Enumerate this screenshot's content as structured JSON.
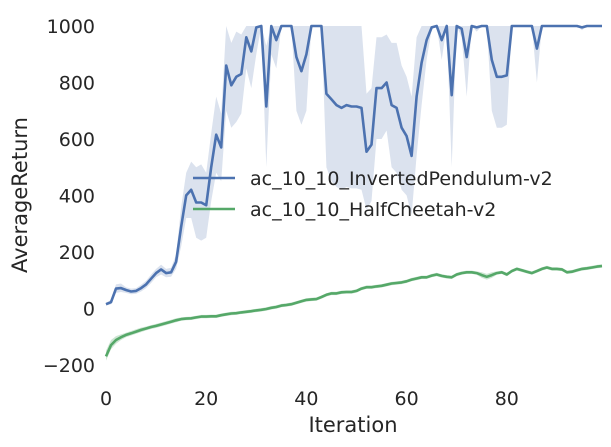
{
  "chart_data": {
    "type": "line",
    "xlabel": "Iteration",
    "ylabel": "AverageReturn",
    "xlim": [
      0,
      99
    ],
    "ylim": [
      -250,
      1000
    ],
    "xticks": [
      0,
      20,
      40,
      60,
      80
    ],
    "yticks": [
      -200,
      0,
      200,
      400,
      600,
      800,
      1000
    ],
    "xtick_labels": [
      "0",
      "20",
      "40",
      "60",
      "80"
    ],
    "ytick_labels": [
      "−200",
      "0",
      "200",
      "400",
      "600",
      "800",
      "1000"
    ],
    "grid": false,
    "legend_position": "center-right",
    "series": [
      {
        "name": "ac_10_10_InvertedPendulum-v2",
        "color": "#4c72b0",
        "band_color": "#dbe2ee",
        "x": [
          0,
          1,
          2,
          3,
          4,
          5,
          6,
          7,
          8,
          9,
          10,
          11,
          12,
          13,
          14,
          15,
          16,
          17,
          18,
          19,
          20,
          21,
          22,
          23,
          24,
          25,
          26,
          27,
          28,
          29,
          30,
          31,
          32,
          33,
          34,
          35,
          36,
          37,
          38,
          39,
          40,
          41,
          42,
          43,
          44,
          45,
          46,
          47,
          48,
          49,
          50,
          51,
          52,
          53,
          54,
          55,
          56,
          57,
          58,
          59,
          60,
          61,
          62,
          63,
          64,
          65,
          66,
          67,
          68,
          69,
          70,
          71,
          72,
          73,
          74,
          75,
          76,
          77,
          78,
          79,
          80,
          81,
          82,
          83,
          84,
          85,
          86,
          87,
          88,
          89,
          90,
          91,
          92,
          93,
          94,
          95,
          96,
          97,
          98,
          99
        ],
        "values": [
          15,
          22,
          70,
          72,
          65,
          60,
          62,
          72,
          85,
          105,
          125,
          138,
          125,
          128,
          165,
          290,
          400,
          420,
          375,
          375,
          365,
          500,
          615,
          570,
          860,
          790,
          820,
          830,
          960,
          910,
          995,
          1000,
          715,
          1000,
          950,
          1000,
          1000,
          1000,
          890,
          840,
          900,
          1000,
          1000,
          1000,
          760,
          740,
          720,
          710,
          720,
          715,
          715,
          710,
          555,
          580,
          780,
          780,
          800,
          720,
          710,
          640,
          610,
          540,
          750,
          870,
          950,
          995,
          1000,
          950,
          1000,
          755,
          1000,
          990,
          890,
          1000,
          995,
          1000,
          1000,
          880,
          820,
          820,
          825,
          1000,
          1000,
          1000,
          1000,
          1000,
          920,
          1000,
          1000,
          1000,
          1000,
          1000,
          1000,
          1000,
          1000,
          995,
          1000,
          1000,
          1000,
          1000
        ],
        "lower": [
          10,
          15,
          55,
          58,
          55,
          50,
          52,
          60,
          72,
          90,
          110,
          120,
          110,
          112,
          140,
          220,
          320,
          320,
          250,
          240,
          250,
          380,
          480,
          450,
          700,
          640,
          660,
          690,
          850,
          780,
          900,
          1000,
          500,
          900,
          850,
          1000,
          1000,
          1000,
          700,
          650,
          700,
          1000,
          1000,
          1000,
          500,
          450,
          430,
          420,
          430,
          425,
          425,
          420,
          350,
          380,
          600,
          600,
          630,
          500,
          480,
          420,
          400,
          330,
          540,
          720,
          880,
          990,
          1000,
          880,
          1000,
          500,
          1000,
          960,
          750,
          1000,
          980,
          1000,
          1000,
          700,
          640,
          640,
          650,
          1000,
          1000,
          1000,
          1000,
          1000,
          800,
          1000,
          1000,
          1000,
          1000,
          1000,
          1000,
          1000,
          1000,
          985,
          1000,
          1000,
          1000,
          1000
        ],
        "upper": [
          20,
          30,
          85,
          88,
          75,
          70,
          72,
          84,
          98,
          120,
          140,
          155,
          140,
          144,
          190,
          360,
          480,
          520,
          500,
          510,
          480,
          620,
          750,
          690,
          1000,
          940,
          980,
          970,
          1000,
          1000,
          1000,
          1000,
          930,
          1000,
          1000,
          1000,
          1000,
          1000,
          1000,
          1000,
          1000,
          1000,
          1000,
          1000,
          1000,
          1000,
          1000,
          1000,
          1000,
          1000,
          1000,
          1000,
          760,
          780,
          960,
          960,
          970,
          940,
          940,
          860,
          820,
          750,
          960,
          1000,
          1000,
          1000,
          1000,
          1000,
          1000,
          1000,
          1000,
          1000,
          1000,
          1000,
          1000,
          1000,
          1000,
          1000,
          1000,
          1000,
          1000,
          1000,
          1000,
          1000,
          1000,
          1000,
          1000,
          1000,
          1000,
          1000,
          1000,
          1000,
          1000,
          1000,
          1000,
          1000,
          1000,
          1000,
          1000,
          1000
        ]
      },
      {
        "name": "ac_10_10_HalfCheetah-v2",
        "color": "#55a868",
        "band_color": "#cde5d3",
        "x": [
          0,
          1,
          2,
          3,
          4,
          5,
          6,
          7,
          8,
          9,
          10,
          11,
          12,
          13,
          14,
          15,
          16,
          17,
          18,
          19,
          20,
          21,
          22,
          23,
          24,
          25,
          26,
          27,
          28,
          29,
          30,
          31,
          32,
          33,
          34,
          35,
          36,
          37,
          38,
          39,
          40,
          41,
          42,
          43,
          44,
          45,
          46,
          47,
          48,
          49,
          50,
          51,
          52,
          53,
          54,
          55,
          56,
          57,
          58,
          59,
          60,
          61,
          62,
          63,
          64,
          65,
          66,
          67,
          68,
          69,
          70,
          71,
          72,
          73,
          74,
          75,
          76,
          77,
          78,
          79,
          80,
          81,
          82,
          83,
          84,
          85,
          86,
          87,
          88,
          89,
          90,
          91,
          92,
          93,
          94,
          95,
          96,
          97,
          98,
          99
        ],
        "values": [
          -170,
          -130,
          -112,
          -102,
          -94,
          -88,
          -82,
          -76,
          -71,
          -66,
          -62,
          -57,
          -52,
          -47,
          -42,
          -38,
          -36,
          -35,
          -32,
          -29,
          -29,
          -28,
          -28,
          -24,
          -21,
          -18,
          -17,
          -14,
          -12,
          -10,
          -7,
          -5,
          -2,
          2,
          5,
          10,
          12,
          15,
          20,
          25,
          30,
          32,
          33,
          40,
          48,
          53,
          53,
          57,
          58,
          58,
          62,
          70,
          75,
          75,
          78,
          80,
          84,
          88,
          90,
          92,
          96,
          102,
          106,
          110,
          110,
          116,
          120,
          115,
          112,
          110,
          120,
          125,
          128,
          128,
          125,
          118,
          112,
          118,
          125,
          128,
          120,
          132,
          140,
          135,
          130,
          125,
          132,
          140,
          145,
          140,
          140,
          138,
          128,
          130,
          135,
          140,
          142,
          145,
          148,
          150
        ],
        "lower": [
          -185,
          -145,
          -125,
          -112,
          -102,
          -96,
          -90,
          -84,
          -78,
          -73,
          -69,
          -64,
          -59,
          -54,
          -49,
          -44,
          -42,
          -41,
          -38,
          -35,
          -35,
          -34,
          -34,
          -30,
          -27,
          -24,
          -23,
          -20,
          -18,
          -16,
          -13,
          -11,
          -8,
          -4,
          -1,
          4,
          6,
          9,
          14,
          19,
          24,
          26,
          27,
          34,
          42,
          47,
          47,
          51,
          52,
          52,
          56,
          64,
          69,
          69,
          72,
          74,
          78,
          82,
          84,
          86,
          90,
          96,
          100,
          104,
          104,
          110,
          114,
          109,
          106,
          104,
          114,
          119,
          122,
          122,
          119,
          108,
          102,
          108,
          119,
          122,
          114,
          126,
          134,
          129,
          124,
          119,
          126,
          134,
          139,
          134,
          134,
          132,
          122,
          124,
          129,
          134,
          136,
          139,
          142,
          144
        ],
        "upper": [
          -150,
          -112,
          -98,
          -92,
          -86,
          -80,
          -74,
          -68,
          -64,
          -59,
          -55,
          -50,
          -45,
          -40,
          -35,
          -32,
          -30,
          -29,
          -26,
          -23,
          -23,
          -22,
          -22,
          -18,
          -15,
          -12,
          -11,
          -8,
          -6,
          -4,
          -1,
          1,
          4,
          8,
          11,
          16,
          18,
          21,
          26,
          31,
          36,
          38,
          39,
          46,
          54,
          59,
          59,
          63,
          64,
          64,
          68,
          76,
          81,
          81,
          84,
          86,
          90,
          94,
          96,
          98,
          102,
          108,
          112,
          116,
          116,
          122,
          126,
          121,
          118,
          116,
          126,
          131,
          134,
          134,
          131,
          128,
          122,
          128,
          131,
          134,
          126,
          138,
          146,
          141,
          136,
          131,
          138,
          146,
          151,
          146,
          146,
          144,
          134,
          136,
          141,
          146,
          148,
          151,
          154,
          156
        ]
      }
    ]
  }
}
